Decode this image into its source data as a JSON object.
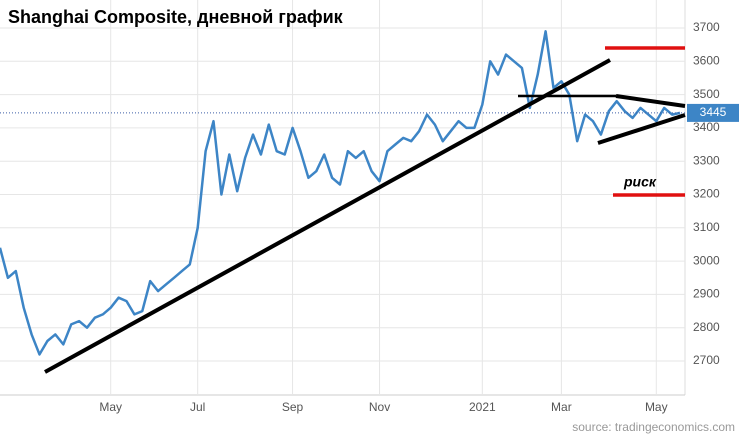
{
  "chart_data": {
    "type": "line",
    "title": "Shanghai Composite, дневной график",
    "annotation": "риск",
    "source": "source: tradingeconomics.com",
    "current_value": 3445,
    "categories": [
      null,
      null,
      null,
      null,
      null,
      null,
      null,
      null,
      null,
      null,
      null,
      null,
      null,
      null,
      "May",
      null,
      null,
      null,
      null,
      null,
      null,
      null,
      null,
      null,
      null,
      "Jul",
      null,
      null,
      null,
      null,
      null,
      null,
      null,
      null,
      null,
      null,
      null,
      "Sep",
      null,
      null,
      null,
      null,
      null,
      null,
      null,
      null,
      null,
      null,
      "Nov",
      null,
      null,
      null,
      null,
      null,
      null,
      null,
      null,
      null,
      null,
      null,
      null,
      "2021",
      null,
      null,
      null,
      null,
      null,
      null,
      null,
      null,
      null,
      "Mar",
      null,
      null,
      null,
      null,
      null,
      null,
      null,
      null,
      null,
      null,
      null,
      "May",
      null,
      null,
      null
    ],
    "series": [
      {
        "name": "Shanghai Composite",
        "color": "#3d85c6",
        "values": [
          3040,
          2950,
          2970,
          2860,
          2780,
          2720,
          2760,
          2780,
          2750,
          2810,
          2820,
          2800,
          2830,
          2840,
          2860,
          2890,
          2880,
          2840,
          2850,
          2940,
          2910,
          2930,
          2950,
          2970,
          2990,
          3100,
          3330,
          3420,
          3200,
          3320,
          3210,
          3310,
          3380,
          3320,
          3410,
          3330,
          3320,
          3400,
          3330,
          3250,
          3270,
          3320,
          3250,
          3230,
          3330,
          3310,
          3330,
          3270,
          3240,
          3330,
          3350,
          3370,
          3360,
          3390,
          3440,
          3410,
          3360,
          3390,
          3420,
          3400,
          3400,
          3470,
          3600,
          3560,
          3620,
          3600,
          3580,
          3460,
          3560,
          3690,
          3520,
          3540,
          3500,
          3360,
          3440,
          3420,
          3380,
          3450,
          3480,
          3450,
          3430,
          3460,
          3440,
          3420,
          3460,
          3440,
          3445
        ]
      }
    ],
    "ylim": [
      2598,
      3784
    ],
    "yticks": [
      2700,
      2800,
      2900,
      3000,
      3100,
      3200,
      3300,
      3400,
      3500,
      3600,
      3700
    ],
    "grid": true
  }
}
